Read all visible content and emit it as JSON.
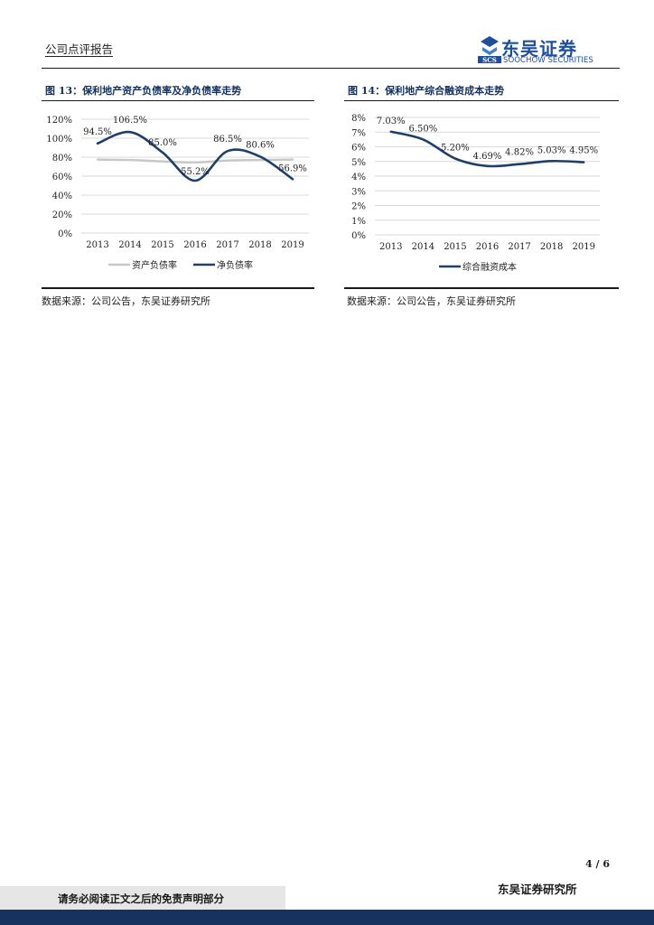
{
  "header": {
    "report_type": "公司点评报告",
    "logo_cn": "东吴证券",
    "logo_en": "SOOCHOW SECURITIES",
    "logo_mark": "SCS"
  },
  "figure13": {
    "title": "图 13：保利地产资产负债率及净负债率走势",
    "source": "数据来源：公司公告，东吴证券研究所"
  },
  "figure14": {
    "title": "图 14：保利地产综合融资成本走势",
    "source": "数据来源：公司公告，东吴证券研究所"
  },
  "chart_data": [
    {
      "type": "line",
      "title": "保利地产资产负债率及净负债率走势",
      "categories": [
        "2013",
        "2014",
        "2015",
        "2016",
        "2017",
        "2018",
        "2019"
      ],
      "y_ticks": [
        "0%",
        "20%",
        "40%",
        "60%",
        "80%",
        "100%",
        "120%"
      ],
      "ylim": [
        0,
        120
      ],
      "legend_position": "bottom",
      "series": [
        {
          "name": "资产负债率",
          "color": "#c8c8c8",
          "values": [
            77.5,
            77.0,
            75.5,
            74.5,
            76.5,
            77.0,
            77.5
          ],
          "labels": null
        },
        {
          "name": "净负债率",
          "color": "#1f3f6b",
          "values": [
            94.5,
            106.5,
            85.0,
            55.2,
            86.5,
            80.6,
            56.9
          ],
          "labels": [
            "94.5%",
            "106.5%",
            "85.0%",
            "55.2%",
            "86.5%",
            "80.6%",
            "56.9%"
          ]
        }
      ]
    },
    {
      "type": "line",
      "title": "保利地产综合融资成本走势",
      "categories": [
        "2013",
        "2014",
        "2015",
        "2016",
        "2017",
        "2018",
        "2019"
      ],
      "y_ticks": [
        "0%",
        "1%",
        "2%",
        "3%",
        "4%",
        "5%",
        "6%",
        "7%",
        "8%"
      ],
      "ylim": [
        0,
        8
      ],
      "legend_position": "bottom",
      "series": [
        {
          "name": "综合融资成本",
          "color": "#1f3f6b",
          "values": [
            7.03,
            6.5,
            5.2,
            4.69,
            4.82,
            5.03,
            4.95
          ],
          "labels": [
            "7.03%",
            "6.50%",
            "5.20%",
            "4.69%",
            "4.82%",
            "5.03%",
            "4.95%"
          ]
        }
      ]
    }
  ],
  "footer": {
    "page": "4 / 6",
    "org": "东吴证券研究所",
    "disclaimer": "请务必阅读正文之后的免责声明部分"
  }
}
